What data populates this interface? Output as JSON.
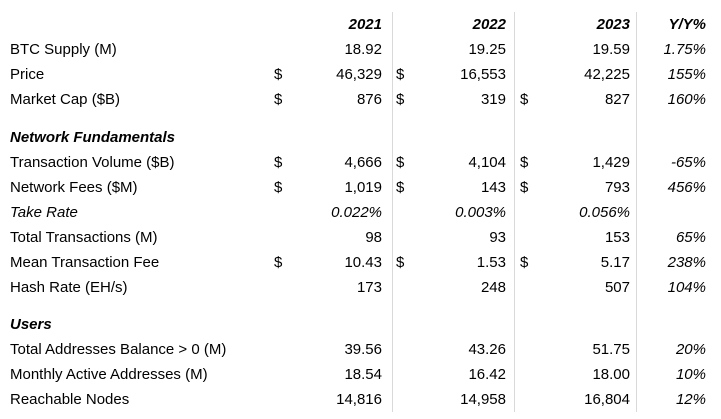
{
  "header": {
    "y2021": "2021",
    "y2022": "2022",
    "y2023": "2023",
    "yoy": "Y/Y%"
  },
  "market_rows": [
    {
      "label": "BTC Supply (M)",
      "c1": "",
      "v1": "18.92",
      "c2": "",
      "v2": "19.25",
      "c3": "",
      "v3": "19.59",
      "yoy": "1.75%"
    },
    {
      "label": "Price",
      "c1": "$",
      "v1": "46,329",
      "c2": "$",
      "v2": "16,553",
      "c3": "",
      "v3": "42,225",
      "yoy": "155%"
    },
    {
      "label": "Market Cap ($B)",
      "c1": "$",
      "v1": "876",
      "c2": "$",
      "v2": "319",
      "c3": "$",
      "v3": "827",
      "yoy": "160%"
    }
  ],
  "fundamentals_title": "Network Fundamentals",
  "fundamentals_rows": [
    {
      "label": "Transaction Volume ($B)",
      "c1": "$",
      "v1": "4,666",
      "c2": "$",
      "v2": "4,104",
      "c3": "$",
      "v3": "1,429",
      "yoy": "-65%"
    },
    {
      "label": "Network Fees ($M)",
      "c1": "$",
      "v1": "1,019",
      "c2": "$",
      "v2": "143",
      "c3": "$",
      "v3": "793",
      "yoy": "456%"
    },
    {
      "label": "Take Rate",
      "c1": "",
      "v1": "0.022%",
      "c2": "",
      "v2": "0.003%",
      "c3": "",
      "v3": "0.056%",
      "yoy": ""
    },
    {
      "label": "Total Transactions (M)",
      "c1": "",
      "v1": "98",
      "c2": "",
      "v2": "93",
      "c3": "",
      "v3": "153",
      "yoy": "65%"
    },
    {
      "label": "Mean Transaction Fee",
      "c1": "$",
      "v1": "10.43",
      "c2": "$",
      "v2": "1.53",
      "c3": "$",
      "v3": "5.17",
      "yoy": "238%"
    },
    {
      "label": "Hash Rate (EH/s)",
      "c1": "",
      "v1": "173",
      "c2": "",
      "v2": "248",
      "c3": "",
      "v3": "507",
      "yoy": "104%"
    }
  ],
  "users_title": "Users",
  "users_rows": [
    {
      "label": "Total Addresses Balance > 0 (M)",
      "c1": "",
      "v1": "39.56",
      "c2": "",
      "v2": "43.26",
      "c3": "",
      "v3": "51.75",
      "yoy": "20%"
    },
    {
      "label": "Monthly Active Addresses (M)",
      "c1": "",
      "v1": "18.54",
      "c2": "",
      "v2": "16.42",
      "c3": "",
      "v3": "18.00",
      "yoy": "10%"
    },
    {
      "label": "Reachable Nodes",
      "c1": "",
      "v1": "14,816",
      "c2": "",
      "v2": "14,958",
      "c3": "",
      "v3": "16,804",
      "yoy": "12%"
    }
  ]
}
